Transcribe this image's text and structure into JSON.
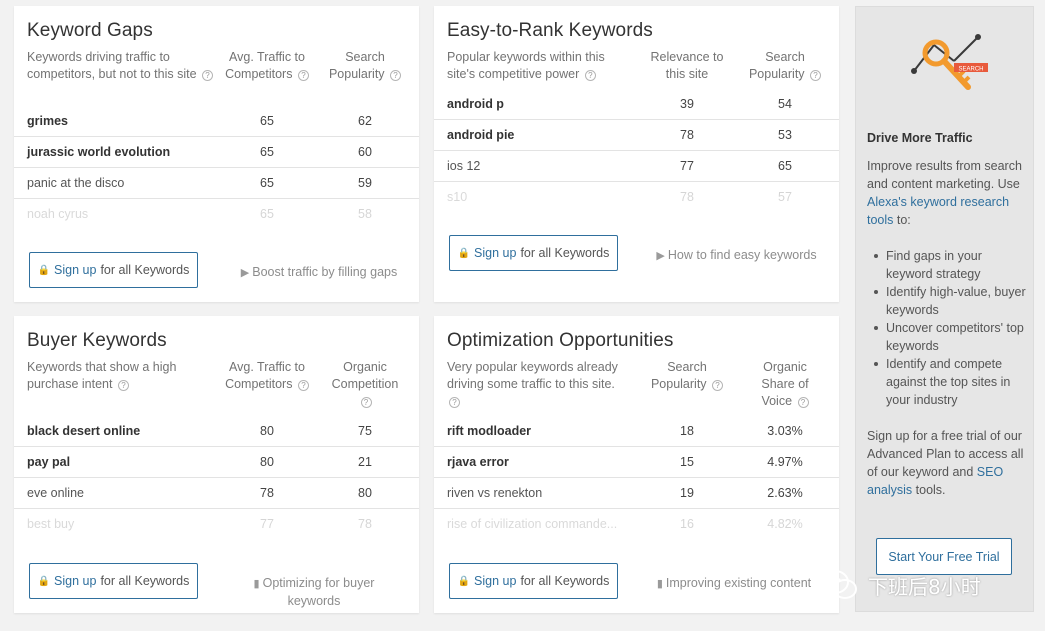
{
  "cards": [
    {
      "title": "Keyword Gaps",
      "desc": "Keywords driving traffic to competitors, but not to this site",
      "col1": [
        "Avg. Traffic to",
        "Competitors"
      ],
      "col2": [
        "Search",
        "Popularity"
      ],
      "rows": [
        {
          "kw": "grimes",
          "v1": "65",
          "v2": "62"
        },
        {
          "kw": "jurassic world evolution",
          "v1": "65",
          "v2": "60"
        },
        {
          "kw": "panic at the disco",
          "v1": "65",
          "v2": "59"
        },
        {
          "kw": "noah cyrus",
          "v1": "65",
          "v2": "58"
        }
      ],
      "signup_left": "Sign up",
      "signup_right": "for all Keywords",
      "helper": "Boost traffic by filling gaps"
    },
    {
      "title": "Easy-to-Rank Keywords",
      "desc": "Popular keywords within this site's competitive power",
      "col1": [
        "Relevance to",
        "this site"
      ],
      "col2": [
        "Search",
        "Popularity"
      ],
      "rows": [
        {
          "kw": "android p",
          "v1": "39",
          "v2": "54"
        },
        {
          "kw": "android pie",
          "v1": "78",
          "v2": "53"
        },
        {
          "kw": "ios 12",
          "v1": "77",
          "v2": "65"
        },
        {
          "kw": "s10",
          "v1": "78",
          "v2": "57"
        }
      ],
      "signup_left": "Sign up",
      "signup_right": "for all Keywords",
      "helper": "How to find easy keywords"
    },
    {
      "title": "Buyer Keywords",
      "desc": "Keywords that show a high purchase intent",
      "col1": [
        "Avg. Traffic to",
        "Competitors"
      ],
      "col2": [
        "Organic",
        "Competition"
      ],
      "rows": [
        {
          "kw": "black desert online",
          "v1": "80",
          "v2": "75"
        },
        {
          "kw": "pay pal",
          "v1": "80",
          "v2": "21"
        },
        {
          "kw": "eve online",
          "v1": "78",
          "v2": "80"
        },
        {
          "kw": "best buy",
          "v1": "77",
          "v2": "78"
        }
      ],
      "signup_left": "Sign up",
      "signup_right": "for all Keywords",
      "helper": "Optimizing for buyer keywords"
    },
    {
      "title": "Optimization Opportunities",
      "desc": "Very popular keywords already driving some traffic to this site.",
      "col1": [
        "Search",
        "Popularity"
      ],
      "col2": [
        "Organic",
        "Share of",
        "Voice"
      ],
      "rows": [
        {
          "kw": "rift modloader",
          "v1": "18",
          "v2": "3.03%"
        },
        {
          "kw": "rjava error",
          "v1": "15",
          "v2": "4.97%"
        },
        {
          "kw": "riven vs renekton",
          "v1": "19",
          "v2": "2.63%"
        },
        {
          "kw": "rise of civilization commande...",
          "v1": "16",
          "v2": "4.82%"
        }
      ],
      "signup_left": "Sign up",
      "signup_right": "for all Keywords",
      "helper": "Improving existing content"
    }
  ],
  "sidebar": {
    "title": "Drive More Traffic",
    "intro_1": "Improve results from search and content marketing. Use ",
    "intro_link": "Alexa's keyword research tools",
    "intro_2": " to:",
    "bullets": [
      "Find gaps in your keyword strategy",
      "Identify high-value, buyer keywords",
      "Uncover competitors' top keywords",
      "Identify and compete against the top sites in your industry"
    ],
    "outro_1": "Sign up for a free trial of our Advanced Plan to access all of our keyword and ",
    "outro_link": "SEO analysis",
    "outro_2": " tools.",
    "button": "Start Your Free Trial",
    "key_tag": "SEARCH"
  },
  "watermark": "下班后8小时",
  "colors": {
    "accent": "#2f6f9d",
    "key_orange": "#f29a2e",
    "tag_red": "#e85a3c"
  }
}
